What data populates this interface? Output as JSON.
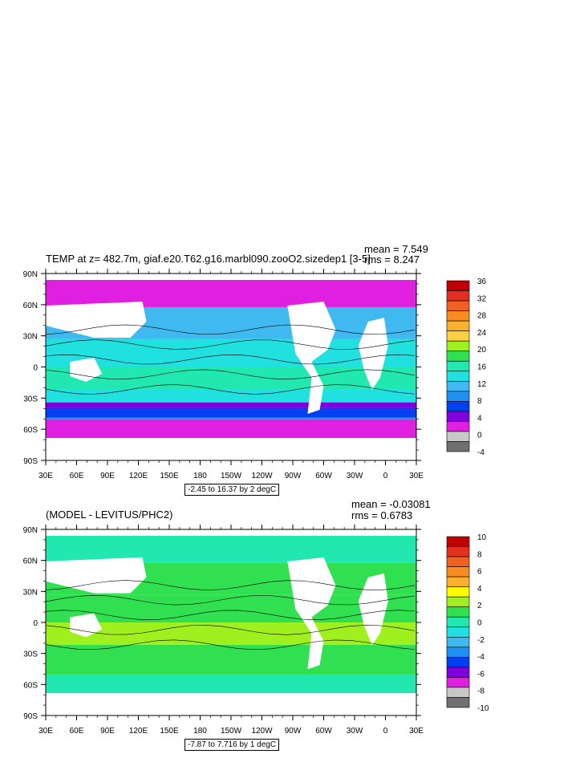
{
  "chart_data": [
    {
      "type": "heatmap",
      "title": "TEMP at z= 482.7m, giaf.e20.T62.g16.marbl090.zooO2.sizedep1 [3-5]",
      "mean_text": "mean = 7.549",
      "rms_text": "rms = 8.247",
      "range_text": "-2.45 to 16.37 by 2 degC",
      "xticks": [
        "30E",
        "60E",
        "90E",
        "120E",
        "150E",
        "180",
        "150W",
        "120W",
        "90W",
        "60W",
        "30W",
        "0",
        "30E"
      ],
      "yticks": [
        "90N",
        "60N",
        "30N",
        "0",
        "30S",
        "60S",
        "90S"
      ],
      "colorbar_labels": [
        "36",
        "32",
        "28",
        "24",
        "20",
        "16",
        "12",
        "8",
        "4",
        "0",
        "-4"
      ],
      "colorbar_colors": [
        "#c00000",
        "#e43020",
        "#f06020",
        "#f88c20",
        "#fcb030",
        "#fcd040",
        "#a0f020",
        "#30e050",
        "#20e8b0",
        "#20e0e0",
        "#40b8f0",
        "#2090f0",
        "#0040f0",
        "#8000e0",
        "#e020e0",
        "#c8c8c8",
        "#707070"
      ]
    },
    {
      "type": "heatmap",
      "title": "(MODEL - LEVITUS/PHC2)",
      "mean_text": "mean = -0.03081",
      "rms_text": "rms = 0.6783",
      "range_text": "-7.87 to 7.716 by 1 degC",
      "xticks": [
        "30E",
        "60E",
        "90E",
        "120E",
        "150E",
        "180",
        "150W",
        "120W",
        "90W",
        "60W",
        "30W",
        "0",
        "30E"
      ],
      "yticks": [
        "90N",
        "60N",
        "30N",
        "0",
        "30S",
        "60S",
        "90S"
      ],
      "colorbar_labels": [
        "10",
        "8",
        "6",
        "4",
        "2",
        "0",
        "-2",
        "-4",
        "-6",
        "-8",
        "-10"
      ],
      "colorbar_colors": [
        "#c00000",
        "#e43020",
        "#f06020",
        "#f88c20",
        "#fcb030",
        "#fcfc00",
        "#a0f020",
        "#30e050",
        "#20e8b0",
        "#20e0e0",
        "#40b8f0",
        "#2090f0",
        "#0040f0",
        "#8000e0",
        "#e020e0",
        "#c8c8c8",
        "#707070"
      ]
    }
  ]
}
